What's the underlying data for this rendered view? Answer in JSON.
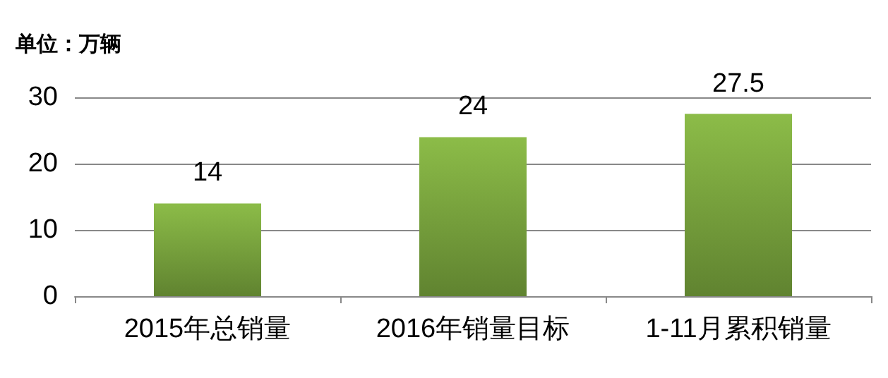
{
  "chart_data": {
    "type": "bar",
    "ylabel": "单位：万辆",
    "categories": [
      "2015年总销量",
      "2016年销量目标",
      "1-11月累积销量"
    ],
    "values": [
      14,
      24,
      27.5
    ],
    "color": "#8cbc48",
    "ylim": [
      0,
      30
    ],
    "yticks": [
      0,
      10,
      20,
      30
    ],
    "grid": "y",
    "data_labels": true
  }
}
